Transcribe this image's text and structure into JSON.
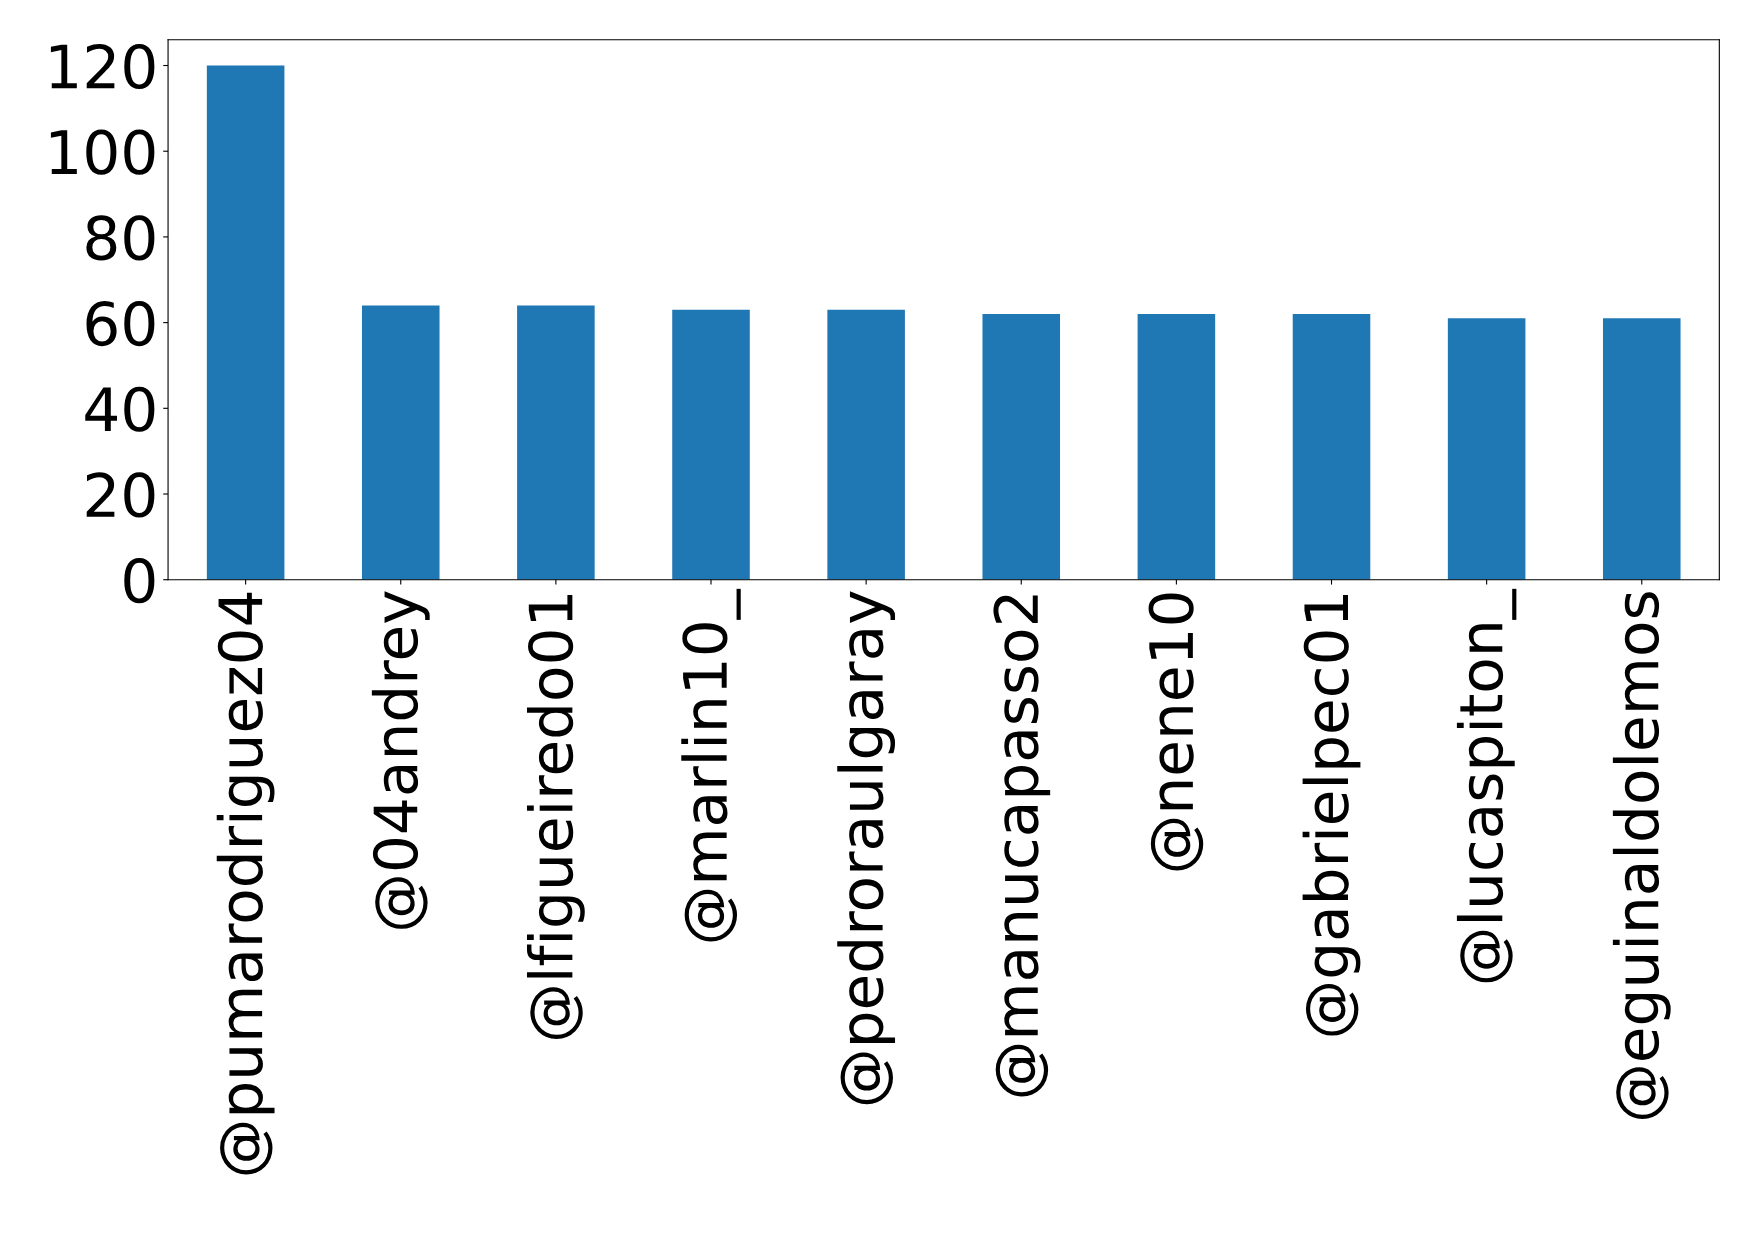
{
  "chart_data": {
    "type": "bar",
    "categories": [
      "@pumarodriguez04",
      "@04andrey",
      "@lfigueiredo01",
      "@marlin10_",
      "@pedroraulgaray",
      "@manucapasso2",
      "@nene10",
      "@gabrielpec01",
      "@lucaspiton_",
      "@eguinaldolemos"
    ],
    "values": [
      120,
      64,
      64,
      63,
      63,
      62,
      62,
      62,
      61,
      61
    ],
    "color": "#1f77b4",
    "ylim": [
      0,
      126
    ],
    "yticks": [
      0,
      20,
      40,
      60,
      80,
      100,
      120
    ],
    "grid": false,
    "legend": false
  }
}
